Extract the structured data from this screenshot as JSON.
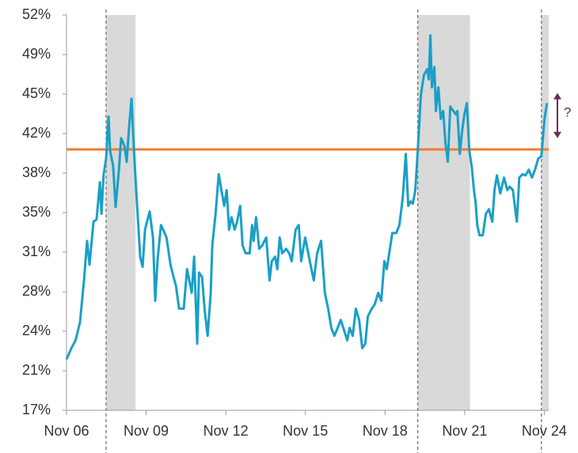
{
  "chart_data": {
    "type": "line",
    "color": "#1a9fc7",
    "xlim": [
      0,
      218
    ],
    "xticks": [
      {
        "value": 0,
        "label": "Nov 06"
      },
      {
        "value": 36,
        "label": "Nov 09"
      },
      {
        "value": 72,
        "label": "Nov 12"
      },
      {
        "value": 108,
        "label": "Nov 15"
      },
      {
        "value": 144,
        "label": "Nov 18"
      },
      {
        "value": 180,
        "label": "Nov 21"
      },
      {
        "value": 216,
        "label": "Nov 24"
      }
    ],
    "ylim": [
      17,
      52
    ],
    "yticks": [
      {
        "value": 17,
        "label": "17%"
      },
      {
        "value": 20.5,
        "label": "21%"
      },
      {
        "value": 24,
        "label": "24%"
      },
      {
        "value": 27.5,
        "label": "28%"
      },
      {
        "value": 31,
        "label": "31%"
      },
      {
        "value": 34.5,
        "label": "35%"
      },
      {
        "value": 38,
        "label": "38%"
      },
      {
        "value": 41.5,
        "label": "42%"
      },
      {
        "value": 45,
        "label": "45%"
      },
      {
        "value": 48.5,
        "label": "49%"
      },
      {
        "value": 52,
        "label": "52%"
      }
    ],
    "shaded_ranges": [
      [
        17.9,
        31.2
      ],
      [
        158.8,
        182.4
      ],
      [
        214.7,
        218
      ]
    ],
    "shade_color": "#d9d9d9",
    "vlines": [
      17.9,
      158.8,
      214.7
    ],
    "hline": {
      "value": 40.1,
      "color": "#ed7d31"
    },
    "annotation": {
      "text": "?",
      "from": 45.1,
      "to": 41.1,
      "color": "#6b2d5c"
    },
    "x": [
      0,
      2.2,
      4.1,
      6.1,
      7.9,
      9.3,
      10.4,
      12.2,
      13.6,
      15.1,
      15.8,
      16.8,
      17.9,
      19,
      19.7,
      21.1,
      22.2,
      23.7,
      24.7,
      26.2,
      27.2,
      28.3,
      29.4,
      30.5,
      31.5,
      33.3,
      34.4,
      35.5,
      37.6,
      39.1,
      40.1,
      41.2,
      42.7,
      43.7,
      45.2,
      47,
      48.4,
      49.5,
      50.9,
      53,
      54.5,
      56.6,
      57.7,
      59.1,
      59.9,
      61.3,
      62.4,
      63.8,
      65.2,
      65.9,
      67.4,
      68.8,
      70.3,
      71.3,
      72.4,
      73.5,
      74.6,
      76,
      77.1,
      78.5,
      79.6,
      81,
      82.8,
      83.9,
      84.6,
      85.7,
      87.1,
      88.5,
      90.3,
      91.8,
      92.8,
      94.3,
      95.3,
      96.4,
      97.5,
      99.3,
      100.7,
      101.8,
      103.6,
      105,
      106.1,
      107.9,
      110,
      111.8,
      113.3,
      115.1,
      116.8,
      118.3,
      119.7,
      121.1,
      122.6,
      124,
      125.8,
      126.9,
      128,
      129.4,
      130.8,
      132.3,
      133.7,
      135.1,
      136.2,
      138,
      139.4,
      140.9,
      142.3,
      143.7,
      144.8,
      145.9,
      147.3,
      149.1,
      150.5,
      152,
      153.4,
      154.5,
      155.6,
      156.6,
      157.7,
      158.8,
      160.2,
      161.6,
      163.1,
      163.8,
      164.5,
      165.2,
      166.3,
      167,
      168.1,
      169.2,
      170.3,
      171.3,
      172.4,
      173.5,
      174.9,
      176,
      176.7,
      177.8,
      178.9,
      179.9,
      181,
      182.1,
      183.2,
      184.2,
      184.9,
      185.7,
      186.7,
      188.2,
      189.6,
      191,
      192.5,
      193.5,
      194.6,
      196.1,
      197.8,
      199.3,
      200.4,
      201.8,
      203.6,
      204.7,
      206.1,
      207.5,
      209,
      210.4,
      211.8,
      213.3,
      214.7,
      216.1,
      217.2
    ],
    "values": [
      21.5,
      22.5,
      23.2,
      24.8,
      28.5,
      32,
      29.9,
      33.7,
      33.9,
      37.2,
      34.4,
      37.9,
      39.3,
      43,
      40,
      38.6,
      35,
      38.3,
      41.1,
      40.4,
      39,
      42.1,
      44.6,
      40,
      36.5,
      30.6,
      29.7,
      33,
      34.6,
      32.3,
      26.7,
      30.4,
      33.4,
      33,
      32.3,
      29.9,
      28.8,
      28,
      26,
      26,
      29.5,
      27.4,
      30.6,
      22.9,
      29.2,
      28.8,
      26,
      23.6,
      27.4,
      31.6,
      34.4,
      37.9,
      36.2,
      35.1,
      36.5,
      33,
      34.1,
      33,
      33.7,
      35.1,
      31.6,
      30.9,
      30.9,
      33.4,
      32,
      34.1,
      31.3,
      31.6,
      32.3,
      28.5,
      30.2,
      30.6,
      29.5,
      32.3,
      30.9,
      31.3,
      30.9,
      30.2,
      33,
      33.4,
      30.2,
      32.3,
      30.2,
      28.5,
      30.9,
      32,
      27.4,
      26,
      24.3,
      23.6,
      24.3,
      25,
      23.9,
      23.2,
      24.3,
      23.6,
      26,
      25,
      22.5,
      22.9,
      25.3,
      26,
      26.4,
      27.4,
      26.7,
      30.2,
      29.5,
      30.9,
      32.7,
      32.7,
      33.4,
      35.8,
      39.7,
      35.1,
      35.5,
      35.3,
      36.5,
      40,
      44.9,
      46.7,
      47.2,
      46.3,
      50.2,
      45.6,
      47.4,
      43.5,
      45.6,
      42.8,
      43.5,
      40.7,
      39,
      43.9,
      43.5,
      43.2,
      43.5,
      39.7,
      41.8,
      43.2,
      44.2,
      40,
      38.6,
      36.5,
      35.5,
      33.4,
      32.5,
      32.5,
      34.4,
      34.8,
      33.7,
      36.5,
      37.8,
      36.2,
      37.6,
      36.5,
      36.8,
      36.5,
      33.7,
      37.6,
      37.9,
      37.8,
      38.3,
      37.6,
      38.3,
      39.3,
      39.5,
      42.8,
      44.2
    ]
  }
}
